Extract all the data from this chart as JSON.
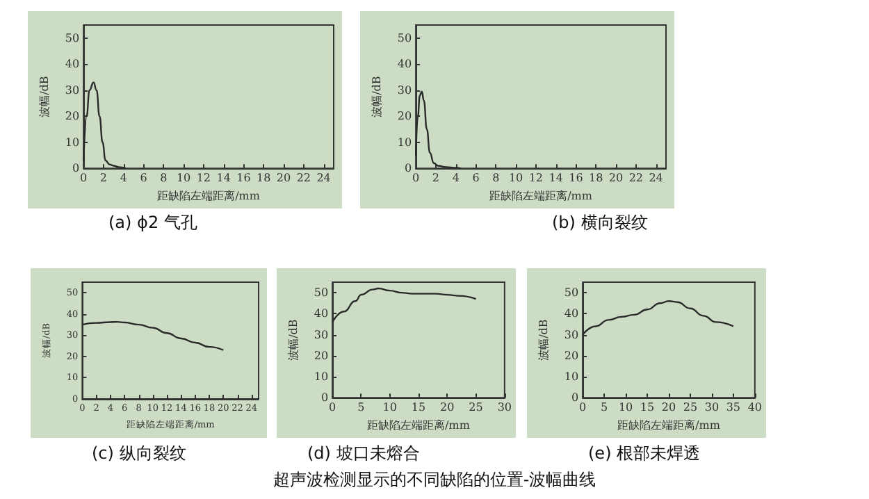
{
  "chart_data": [
    {
      "type": "line",
      "title": "超声波检测显示的不同缺陷的位置-波幅曲线",
      "subtitle": "(a) ϕ2 气孔",
      "xlabel": "距缺陷左端距离/mm",
      "ylabel": "波幅/dB",
      "color": "#2a2a2a",
      "marker": "none",
      "grid": false,
      "x": [
        0,
        0.3,
        0.6,
        1,
        1.3,
        1.6,
        1.9,
        2.2,
        2.6,
        3,
        3.5,
        4.2
      ],
      "values": [
        3,
        20,
        30,
        33,
        30,
        20,
        10,
        3,
        1.5,
        1,
        0.5,
        0
      ],
      "xlim": [
        0,
        25
      ],
      "xticks": [
        0,
        2,
        4,
        6,
        8,
        10,
        12,
        14,
        16,
        18,
        20,
        22,
        24
      ],
      "ylim": [
        0,
        55
      ],
      "yticks": [
        0,
        10,
        20,
        30,
        40,
        50
      ]
    },
    {
      "type": "line",
      "subtitle": "(b) 横向裂纹",
      "xlabel": "距缺陷左端距离/mm",
      "ylabel": "波幅/dB",
      "color": "#2a2a2a",
      "marker": "none",
      "grid": false,
      "x": [
        0,
        0.2,
        0.4,
        0.6,
        0.8,
        1.1,
        1.4,
        1.8,
        2.2,
        3,
        4,
        4.5
      ],
      "values": [
        5,
        20,
        28,
        29.5,
        26,
        15,
        6,
        2,
        1,
        0.5,
        0.2,
        0
      ],
      "xlim": [
        0,
        25
      ],
      "xticks": [
        0,
        2,
        4,
        6,
        8,
        10,
        12,
        14,
        16,
        18,
        20,
        22,
        24
      ],
      "ylim": [
        0,
        55
      ],
      "yticks": [
        0,
        10,
        20,
        30,
        40,
        50
      ]
    },
    {
      "type": "line",
      "subtitle": "(c) 纵向裂纹",
      "xlabel": "距缺陷左端距离/mm",
      "ylabel": "波幅/dB",
      "color": "#2a2a2a",
      "marker": "none",
      "grid": false,
      "x": [
        0,
        2,
        4,
        5,
        6,
        8,
        10,
        12,
        14,
        16,
        18,
        20
      ],
      "values": [
        35,
        35.8,
        36.2,
        36.3,
        36,
        35,
        33.5,
        31,
        28.5,
        26.5,
        24.5,
        23
      ],
      "xlim": [
        0,
        25
      ],
      "xticks": [
        0,
        2,
        4,
        6,
        8,
        10,
        12,
        14,
        16,
        18,
        20,
        22,
        24
      ],
      "ylim": [
        0,
        55
      ],
      "yticks": [
        0,
        10,
        20,
        30,
        40,
        50
      ]
    },
    {
      "type": "line",
      "subtitle": "(d) 坡口未熔合",
      "xlabel": "距缺陷左端距离/mm",
      "ylabel": "波幅/dB",
      "color": "#2a2a2a",
      "marker": "none",
      "grid": false,
      "x": [
        0,
        2,
        4,
        5,
        7,
        8,
        10,
        12,
        14,
        16,
        18,
        20,
        22,
        25
      ],
      "values": [
        36,
        41,
        46,
        49,
        51.5,
        52,
        51,
        50,
        49.5,
        49.5,
        49.5,
        49,
        48.5,
        47
      ],
      "xlim": [
        0,
        30
      ],
      "xticks": [
        0,
        5,
        10,
        15,
        20,
        25,
        30
      ],
      "ylim": [
        0,
        55
      ],
      "yticks": [
        0,
        10,
        20,
        30,
        40,
        50
      ]
    },
    {
      "type": "line",
      "subtitle": "(e) 根部未焊透",
      "xlabel": "距缺陷左端距离/mm",
      "ylabel": "波幅/dB",
      "color": "#2a2a2a",
      "marker": "none",
      "grid": false,
      "x": [
        0,
        3,
        6,
        9,
        12,
        15,
        18,
        20,
        22,
        25,
        28,
        31,
        35
      ],
      "values": [
        30,
        34,
        37,
        38.5,
        39.5,
        42,
        45,
        46,
        45.5,
        42.5,
        39,
        36,
        34
      ],
      "xlim": [
        0,
        40
      ],
      "xticks": [
        0,
        5,
        10,
        15,
        20,
        25,
        30,
        35,
        40
      ],
      "ylim": [
        0,
        55
      ],
      "yticks": [
        0,
        10,
        20,
        30,
        40,
        50
      ]
    }
  ]
}
